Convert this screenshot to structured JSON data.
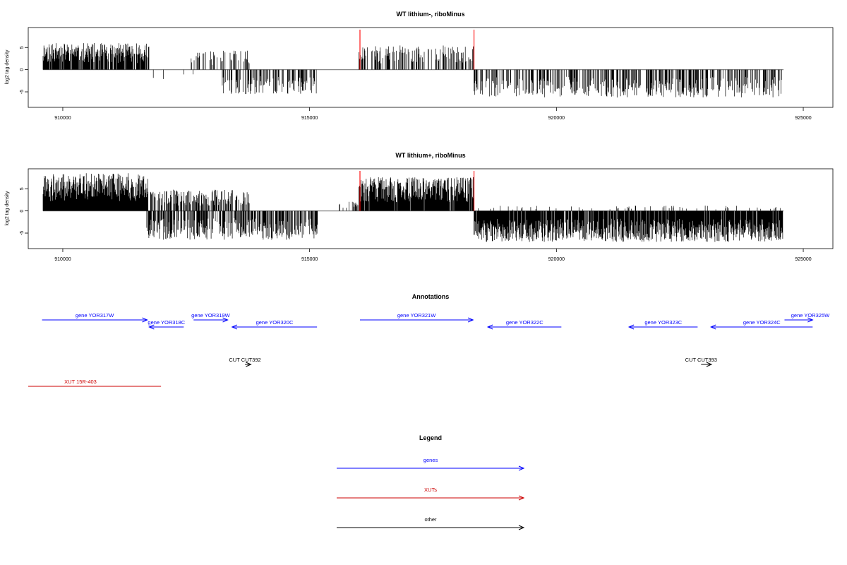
{
  "chart_data": [
    {
      "type": "bar",
      "title": "WT lithium-, riboMinus",
      "ylabel": "log2 tag density",
      "xlim": [
        909300,
        925600
      ],
      "ylim": [
        -8.5,
        9.5
      ],
      "xticks": [
        910000,
        915000,
        920000,
        925000
      ],
      "yticks": [
        -5,
        0,
        5
      ],
      "highlight_x": [
        916020,
        918330
      ],
      "highlight_color": "#ff0000",
      "segments": [
        {
          "start": 909600,
          "end": 911750,
          "kind": "pos",
          "amp": 6.0,
          "density": 0.85,
          "seed": 11
        },
        {
          "start": 912600,
          "end": 913780,
          "kind": "pos",
          "amp": 4.3,
          "density": 0.3,
          "seed": 12
        },
        {
          "start": 913230,
          "end": 915150,
          "kind": "neg",
          "amp": 5.5,
          "density": 0.45,
          "seed": 13
        },
        {
          "start": 916000,
          "end": 918330,
          "kind": "pos",
          "amp": 5.5,
          "density": 0.45,
          "seed": 14
        },
        {
          "start": 918330,
          "end": 924600,
          "kind": "neg",
          "amp": 6.3,
          "density": 0.45,
          "seed": 15
        },
        {
          "start": 911800,
          "end": 912650,
          "kind": "neg",
          "amp": 2.5,
          "density": 0.05,
          "seed": 16
        }
      ]
    },
    {
      "type": "bar",
      "title": "WT lithium+, riboMinus",
      "ylabel": "log2 tag density",
      "xlim": [
        909300,
        925600
      ],
      "ylim": [
        -8.5,
        9.5
      ],
      "xticks": [
        910000,
        915000,
        920000,
        925000
      ],
      "yticks": [
        -5,
        0,
        5
      ],
      "highlight_x": [
        916020,
        918330
      ],
      "highlight_color": "#ff0000",
      "segments": [
        {
          "start": 909600,
          "end": 911720,
          "kind": "pos",
          "amp": 8.5,
          "density": 1.0,
          "seed": 21
        },
        {
          "start": 911700,
          "end": 913780,
          "kind": "pos",
          "amp": 4.8,
          "density": 0.55,
          "seed": 22
        },
        {
          "start": 911700,
          "end": 915200,
          "kind": "neg",
          "amp": 6.5,
          "density": 0.6,
          "seed": 23
        },
        {
          "start": 915600,
          "end": 916000,
          "kind": "pos",
          "amp": 2.2,
          "density": 0.3,
          "seed": 24
        },
        {
          "start": 916000,
          "end": 918330,
          "kind": "pos",
          "amp": 7.6,
          "density": 0.95,
          "seed": 25
        },
        {
          "start": 918330,
          "end": 924600,
          "kind": "neg",
          "amp": 7.0,
          "density": 0.9,
          "seed": 26
        },
        {
          "start": 918330,
          "end": 924600,
          "kind": "pos",
          "amp": 1.2,
          "density": 0.08,
          "seed": 27
        }
      ]
    }
  ],
  "annotations": {
    "title": "Annotations",
    "xlim": [
      909300,
      925600
    ],
    "features": [
      {
        "label": "gene YOR317W",
        "type": "gene",
        "start": 909580,
        "end": 911710,
        "strand": "+",
        "row": 0
      },
      {
        "label": "gene YOR318C",
        "type": "gene",
        "start": 911750,
        "end": 912450,
        "strand": "-",
        "row": 1
      },
      {
        "label": "gene YOR319W",
        "type": "gene",
        "start": 912650,
        "end": 913340,
        "strand": "+",
        "row": 0
      },
      {
        "label": "gene YOR320C",
        "type": "gene",
        "start": 913430,
        "end": 915150,
        "strand": "-",
        "row": 1
      },
      {
        "label": "gene YOR321W",
        "type": "gene",
        "start": 916020,
        "end": 918310,
        "strand": "+",
        "row": 0
      },
      {
        "label": "gene YOR322C",
        "type": "gene",
        "start": 918610,
        "end": 920100,
        "strand": "-",
        "row": 1
      },
      {
        "label": "gene YOR323C",
        "type": "gene",
        "start": 921470,
        "end": 922860,
        "strand": "-",
        "row": 1
      },
      {
        "label": "gene YOR324C",
        "type": "gene",
        "start": 923130,
        "end": 925190,
        "strand": "-",
        "row": 1
      },
      {
        "label": "gene YOR325W",
        "type": "gene",
        "start": 924620,
        "end": 925190,
        "strand": "+",
        "row": 0
      },
      {
        "label": "CUT CUT392",
        "type": "other",
        "start": 913690,
        "end": 913810,
        "strand": "+",
        "row": 2
      },
      {
        "label": "CUT CUT393",
        "type": "other",
        "start": 922930,
        "end": 923140,
        "strand": "+",
        "row": 2
      },
      {
        "label": "XUT 15R-403",
        "type": "xut",
        "start": 909300,
        "end": 911990,
        "strand": "none",
        "row": 3
      }
    ]
  },
  "legend": {
    "title": "Legend",
    "items": [
      {
        "label": "genes",
        "color": "#0000ff"
      },
      {
        "label": "XUTs",
        "color": "#cc0000"
      },
      {
        "label": "other",
        "color": "#000000"
      }
    ]
  },
  "colors": {
    "gene": "#0000ff",
    "xut": "#cc0000",
    "other": "#000000",
    "bars": "#000000",
    "baseline": "#888888"
  }
}
